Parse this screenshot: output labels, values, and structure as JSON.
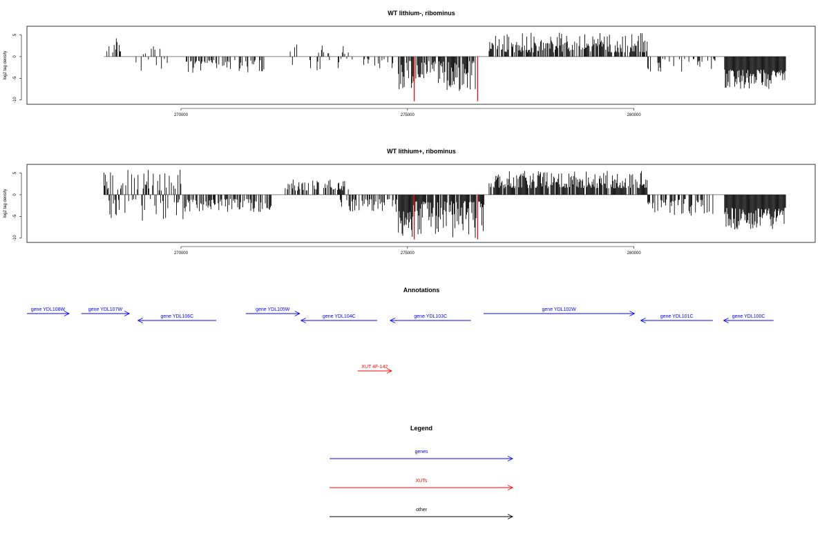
{
  "panels": [
    {
      "title": "WT lithium-, ribominus",
      "ylabel": "log2 tag density",
      "yticks": [
        "5",
        "0",
        "-5",
        "-10"
      ],
      "xticks": [
        "270000",
        "275000",
        "280000"
      ],
      "chart_data": {
        "type": "bar",
        "title": "WT lithium-, ribominus",
        "xlabel": "",
        "ylabel": "log2 tag density",
        "ylim": [
          -11,
          7
        ],
        "xlim": [
          266600,
          284000
        ],
        "grid": false,
        "x_ticks": [
          270000,
          275000,
          280000
        ],
        "y_ticks": [
          5,
          0,
          -5,
          -10
        ],
        "baseline": {
          "from": 268300,
          "to": 283350
        },
        "segments": [
          {
            "from": 268300,
            "to": 268700,
            "sign": "pos",
            "min": 1.0,
            "max": 4.5,
            "density": 0.45
          },
          {
            "from": 268800,
            "to": 269700,
            "sign": "both",
            "min": 0.5,
            "max": 3.5,
            "density": 0.25
          },
          {
            "from": 270100,
            "to": 271900,
            "sign": "neg",
            "min": 0.8,
            "max": 4.0,
            "density": 0.4
          },
          {
            "from": 272300,
            "to": 273700,
            "sign": "both",
            "min": 0.5,
            "max": 3.5,
            "density": 0.25
          },
          {
            "from": 273700,
            "to": 274700,
            "sign": "neg",
            "min": 0.5,
            "max": 3.0,
            "density": 0.2
          },
          {
            "from": 274800,
            "to": 276500,
            "sign": "neg",
            "min": 1.0,
            "max": 8.0,
            "density": 0.8
          },
          {
            "from": 276800,
            "to": 280300,
            "sign": "pos",
            "min": 1.0,
            "max": 5.5,
            "density": 0.75
          },
          {
            "from": 280300,
            "to": 281800,
            "sign": "neg",
            "min": 0.5,
            "max": 3.5,
            "density": 0.3
          },
          {
            "from": 282000,
            "to": 283350,
            "sign": "neg",
            "min": 3.0,
            "max": 7.5,
            "density": 1.0
          }
        ],
        "highlight_lines": [
          {
            "x": 275150,
            "y": -10.3,
            "color": "#ff0000"
          },
          {
            "x": 276550,
            "y": -10.3,
            "color": "#ff0000"
          }
        ]
      }
    },
    {
      "title": "WT lithium+, ribominus",
      "ylabel": "log2 tag density",
      "yticks": [
        "5",
        "0",
        "-5",
        "-10"
      ],
      "xticks": [
        "270000",
        "275000",
        "280000"
      ],
      "chart_data": {
        "type": "bar",
        "title": "WT lithium+, ribominus",
        "xlabel": "",
        "ylabel": "log2 tag density",
        "ylim": [
          -11,
          7
        ],
        "xlim": [
          266600,
          284000
        ],
        "grid": false,
        "x_ticks": [
          270000,
          275000,
          280000
        ],
        "y_ticks": [
          5,
          0,
          -5,
          -10
        ],
        "baseline": {
          "from": 268300,
          "to": 283350
        },
        "segments": [
          {
            "from": 268300,
            "to": 270100,
            "sign": "both",
            "min": 1.0,
            "max": 6.0,
            "density": 0.7
          },
          {
            "from": 270100,
            "to": 272000,
            "sign": "neg",
            "min": 1.0,
            "max": 4.0,
            "density": 0.6
          },
          {
            "from": 272300,
            "to": 273700,
            "sign": "pos",
            "min": 1.0,
            "max": 3.5,
            "density": 0.55
          },
          {
            "from": 273500,
            "to": 274800,
            "sign": "neg",
            "min": 1.0,
            "max": 4.0,
            "density": 0.55
          },
          {
            "from": 274800,
            "to": 276700,
            "sign": "neg",
            "min": 1.5,
            "max": 10.0,
            "density": 0.9
          },
          {
            "from": 276800,
            "to": 280300,
            "sign": "pos",
            "min": 1.5,
            "max": 5.5,
            "density": 0.85
          },
          {
            "from": 280300,
            "to": 281800,
            "sign": "neg",
            "min": 1.0,
            "max": 5.0,
            "density": 0.6
          },
          {
            "from": 282000,
            "to": 283350,
            "sign": "neg",
            "min": 3.0,
            "max": 8.0,
            "density": 1.0
          }
        ],
        "highlight_lines": [
          {
            "x": 275150,
            "y": -10.3,
            "color": "#ff0000"
          },
          {
            "x": 276550,
            "y": -10.3,
            "color": "#ff0000"
          }
        ]
      }
    }
  ],
  "annotations": {
    "title": "Annotations",
    "gene_color": "#0000ff",
    "xut_color": "#ff0000",
    "items": [
      {
        "label": "gene YDL108W",
        "type": "gene",
        "from": 266600,
        "to": 267530,
        "dir": "right",
        "row": 0
      },
      {
        "label": "gene YDL107W",
        "type": "gene",
        "from": 267800,
        "to": 268860,
        "dir": "right",
        "row": 0
      },
      {
        "label": "gene YDL106C",
        "type": "gene",
        "from": 269050,
        "to": 270780,
        "dir": "left",
        "row": 1
      },
      {
        "label": "gene YDL105W",
        "type": "gene",
        "from": 271430,
        "to": 272620,
        "dir": "right",
        "row": 0
      },
      {
        "label": "gene YDL104C",
        "type": "gene",
        "from": 272650,
        "to": 274330,
        "dir": "left",
        "row": 1
      },
      {
        "label": "gene YDL103C",
        "type": "gene",
        "from": 274620,
        "to": 276400,
        "dir": "left",
        "row": 1
      },
      {
        "label": "gene YDL102W",
        "type": "gene",
        "from": 276680,
        "to": 280010,
        "dir": "right",
        "row": 0
      },
      {
        "label": "gene YDL101C",
        "type": "gene",
        "from": 280150,
        "to": 281740,
        "dir": "left",
        "row": 1
      },
      {
        "label": "gene YDL100C",
        "type": "gene",
        "from": 281980,
        "to": 283080,
        "dir": "left",
        "row": 1
      },
      {
        "label": "XUT 4F-142",
        "type": "xut",
        "from": 273900,
        "to": 274650,
        "dir": "right",
        "row": 2
      }
    ]
  },
  "legend": {
    "title": "Legend",
    "items": [
      {
        "label": "genes",
        "color": "#0000ff"
      },
      {
        "label": "XUTs",
        "color": "#ff0000"
      },
      {
        "label": "other",
        "color": "#000000"
      }
    ]
  }
}
